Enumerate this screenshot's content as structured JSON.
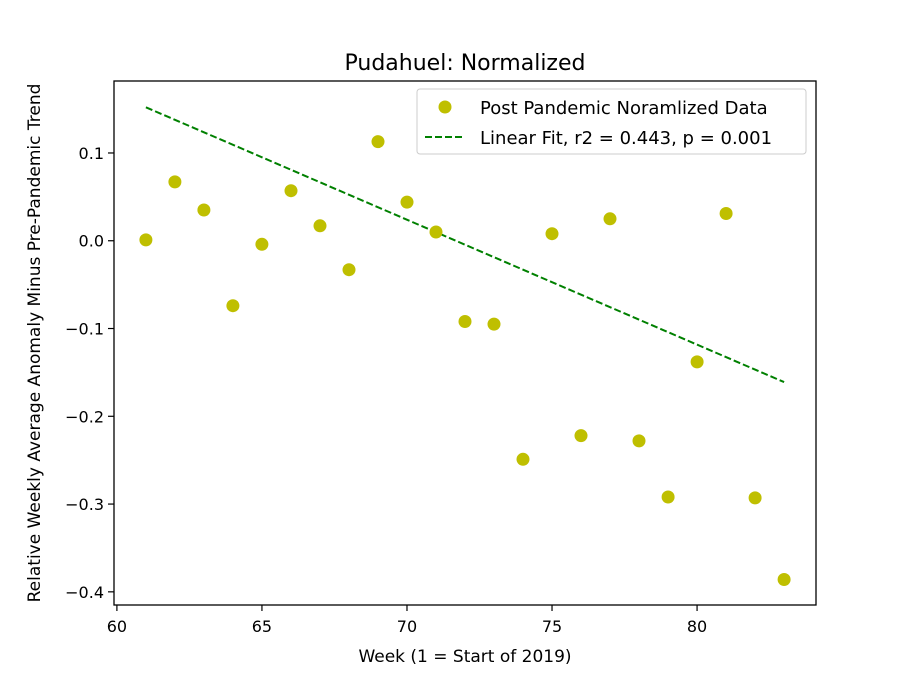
{
  "chart_data": {
    "type": "scatter",
    "title": "Pudahuel: Normalized",
    "xlabel": "Week (1 = Start of 2019)",
    "ylabel": "Relative Weekly Average Anomaly Minus Pre-Pandemic Trend",
    "xlim": [
      59.9,
      84.1
    ],
    "ylim": [
      -0.415,
      0.182
    ],
    "xticks": [
      60,
      65,
      70,
      75,
      80
    ],
    "xtick_labels": [
      "60",
      "65",
      "70",
      "75",
      "80"
    ],
    "yticks": [
      0.1,
      0.0,
      -0.1,
      -0.2,
      -0.3,
      -0.4
    ],
    "ytick_labels": [
      "0.1",
      "0.0",
      "−0.1",
      "−0.2",
      "−0.3",
      "−0.4"
    ],
    "legend_position": "top-right",
    "grid": false,
    "series": [
      {
        "name": "Post Pandemic Noramlized Data",
        "kind": "scatter",
        "color": "#bfbf00",
        "x": [
          61,
          62,
          63,
          64,
          65,
          66,
          67,
          68,
          69,
          70,
          71,
          72,
          73,
          74,
          75,
          76,
          77,
          78,
          79,
          80,
          81,
          82,
          83
        ],
        "y": [
          0.001,
          0.067,
          0.035,
          -0.074,
          -0.004,
          0.057,
          0.017,
          -0.033,
          0.113,
          0.044,
          0.01,
          -0.092,
          -0.095,
          -0.249,
          0.008,
          -0.222,
          0.025,
          -0.228,
          -0.292,
          -0.138,
          0.031,
          -0.293,
          -0.386
        ]
      },
      {
        "name": "Linear Fit, r2 = 0.443, p = 0.001",
        "kind": "line",
        "style": "dashed",
        "color": "#008000",
        "x": [
          61,
          83
        ],
        "y": [
          0.152,
          -0.161
        ]
      }
    ]
  }
}
